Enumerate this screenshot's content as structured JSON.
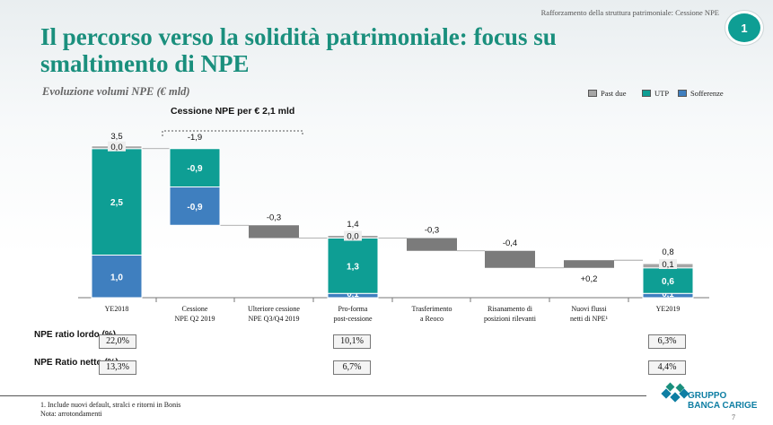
{
  "header": {
    "breadcrumb": "Rafforzamento della struttura patrimoniale: Cessione NPE",
    "page_badge": "1",
    "title": "Il percorso verso la solidità patrimoniale: focus su smaltimento di NPE",
    "subtitle": "Evoluzione volumi NPE (€ mld)"
  },
  "colors": {
    "past_due": "#a6a6a6",
    "utp": "#0e9e94",
    "sofferenze": "#3f7fbf",
    "delta": "#7b7b7b",
    "accent": "#1a8f7d"
  },
  "legend": [
    {
      "label": "Past due",
      "key": "past_due"
    },
    {
      "label": "UTP",
      "key": "utp"
    },
    {
      "label": "Sofferenze",
      "key": "sofferenze"
    }
  ],
  "bracket_label": "Cessione NPE per € 2,1 mld",
  "chart_data": {
    "type": "bar",
    "subtype": "waterfall",
    "title": "Evoluzione volumi NPE (€ mld)",
    "ylim": [
      0,
      3.6
    ],
    "categories": [
      [
        "YE2018"
      ],
      [
        "Cessione",
        "NPE Q2 2019"
      ],
      [
        "Ulteriore cessione",
        "NPE Q3/Q4 2019"
      ],
      [
        "Pro-forma",
        "post-cessione"
      ],
      [
        "Trasferimento",
        "a Reoco"
      ],
      [
        "Risanamento di",
        "posizioni rilevanti"
      ],
      [
        "Nuovi flussi",
        "netti di NPE¹"
      ],
      [
        "YE2019"
      ]
    ],
    "bars": [
      {
        "kind": "stack",
        "total_label": "3,5",
        "segments": [
          {
            "series": "sofferenze",
            "value": 1.0,
            "label": "1,0"
          },
          {
            "series": "utp",
            "value": 2.5,
            "label": "2,5"
          },
          {
            "series": "past_due",
            "value": 0.02,
            "label": "0,0"
          }
        ]
      },
      {
        "kind": "delta_stack",
        "total_label": "-1,9",
        "from": 1.7,
        "to": 3.5,
        "segments": [
          {
            "series": "sofferenze",
            "value": -0.9,
            "label": "-0,9"
          },
          {
            "series": "utp",
            "value": -0.9,
            "label": "-0,9"
          }
        ]
      },
      {
        "kind": "delta",
        "from": 1.4,
        "to": 1.7,
        "label": "-0,3"
      },
      {
        "kind": "stack",
        "total_label": "1,4",
        "segments": [
          {
            "series": "sofferenze",
            "value": 0.1,
            "label": "0,1"
          },
          {
            "series": "utp",
            "value": 1.3,
            "label": "1,3"
          },
          {
            "series": "past_due",
            "value": 0.05,
            "label": "0,0"
          }
        ]
      },
      {
        "kind": "delta",
        "from": 1.1,
        "to": 1.4,
        "label": "-0,3"
      },
      {
        "kind": "delta",
        "from": 0.7,
        "to": 1.1,
        "label": "-0,4"
      },
      {
        "kind": "delta",
        "from": 0.7,
        "to": 0.88,
        "label": "+0,2",
        "label_below": true
      },
      {
        "kind": "stack",
        "total_label": "0,8",
        "segments": [
          {
            "series": "sofferenze",
            "value": 0.1,
            "label": "0,1"
          },
          {
            "series": "utp",
            "value": 0.6,
            "label": "0,6"
          },
          {
            "series": "past_due",
            "value": 0.1,
            "label": "0,1"
          }
        ]
      }
    ]
  },
  "ratios": {
    "gross": {
      "label": "NPE ratio lordo (%)",
      "values": [
        "22,0%",
        "10,1%",
        "6,3%"
      ]
    },
    "net": {
      "label": "NPE Ratio netto (%)",
      "values": [
        "13,3%",
        "6,7%",
        "4,4%"
      ]
    }
  },
  "footnotes": {
    "note1": "1. Include nuovi default, stralci e ritorni in Bonis",
    "note2": "Nota: arrotondamenti"
  },
  "logo": {
    "line1": "GRUPPO",
    "line2": "BANCA CARIGE"
  },
  "page_number": "7"
}
